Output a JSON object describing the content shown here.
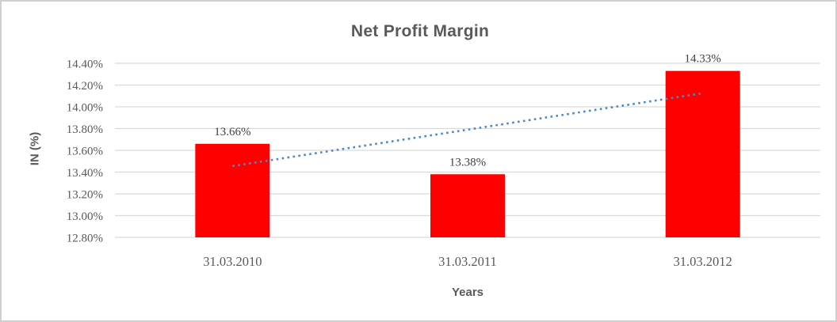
{
  "chart_data": {
    "type": "bar",
    "title": "Net Profit Margin",
    "xlabel": "Years",
    "ylabel": "IN (%)",
    "categories": [
      "31.03.2010",
      "31.03.2011",
      "31.03.2012"
    ],
    "values": [
      13.66,
      13.38,
      14.33
    ],
    "data_labels": [
      "13.66%",
      "13.38%",
      "14.33%"
    ],
    "ylim": [
      12.8,
      14.4
    ],
    "ytick_step": 0.2,
    "ytick_labels": [
      "12.80%",
      "13.00%",
      "13.20%",
      "13.40%",
      "13.60%",
      "13.80%",
      "14.00%",
      "14.20%",
      "14.40%"
    ],
    "grid": true,
    "legend": "none",
    "trendline": {
      "type": "linear",
      "style": "dotted",
      "values_at_categories": [
        13.455,
        13.79,
        14.125
      ]
    }
  },
  "colors": {
    "bar": "#FF0000",
    "trendline": "#4A89C8",
    "gridline": "#D9D9D9",
    "axis_text": "#595959",
    "data_label_text": "#404040",
    "border": "#CFCFCF",
    "background": "#FFFFFF"
  }
}
